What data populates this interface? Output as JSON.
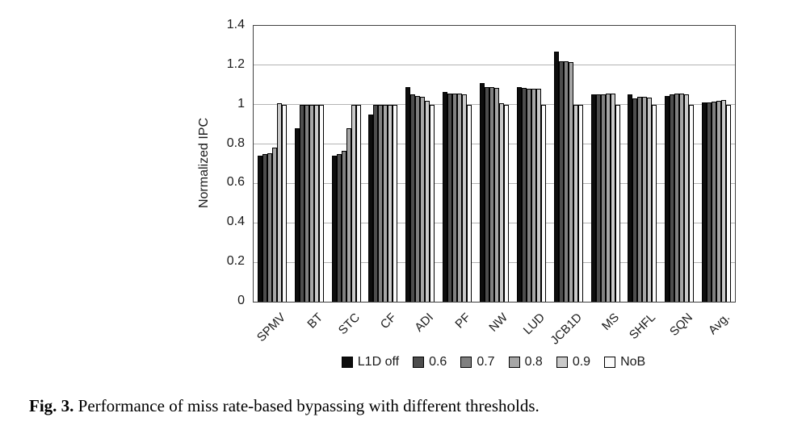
{
  "figure": {
    "caption": {
      "label": "Fig. 3.",
      "text": "Performance of miss rate-based bypassing with different thresholds."
    }
  },
  "chart_data": {
    "type": "bar",
    "title": "",
    "xlabel": "",
    "ylabel": "Normalized IPC",
    "ylim": [
      0,
      1.4
    ],
    "ytick_labels": [
      "0",
      "0.2",
      "0.4",
      "0.6",
      "0.8",
      "1",
      "1.2",
      "1.4"
    ],
    "grid": true,
    "legend_position": "bottom",
    "categories": [
      "SPMV",
      "BT",
      "STC",
      "CF",
      "ADI",
      "PF",
      "NW",
      "LUD",
      "JCB1D",
      "MS",
      "SHFL",
      "SQN",
      "Avg."
    ],
    "series": [
      {
        "name": "L1D off",
        "color": "#0d0d0d",
        "values": [
          0.74,
          0.88,
          0.74,
          0.95,
          1.09,
          1.065,
          1.11,
          1.09,
          1.27,
          1.05,
          1.05,
          1.045,
          1.01
        ]
      },
      {
        "name": "0.6",
        "color": "#4d4d4d",
        "values": [
          0.75,
          1.0,
          0.75,
          1.0,
          1.05,
          1.055,
          1.09,
          1.085,
          1.22,
          1.05,
          1.03,
          1.05,
          1.01
        ]
      },
      {
        "name": "0.7",
        "color": "#808080",
        "values": [
          0.755,
          1.0,
          0.765,
          1.0,
          1.045,
          1.055,
          1.09,
          1.08,
          1.22,
          1.05,
          1.04,
          1.055,
          1.015
        ]
      },
      {
        "name": "0.8",
        "color": "#a6a6a6",
        "values": [
          0.78,
          1.0,
          0.88,
          1.0,
          1.04,
          1.055,
          1.085,
          1.08,
          1.215,
          1.055,
          1.04,
          1.055,
          1.02
        ]
      },
      {
        "name": "0.9",
        "color": "#c9c9c9",
        "values": [
          1.005,
          1.0,
          1.0,
          1.0,
          1.02,
          1.05,
          1.005,
          1.08,
          1.0,
          1.055,
          1.035,
          1.05,
          1.025
        ]
      },
      {
        "name": "NoB",
        "color": "#fbfbfb",
        "values": [
          1.0,
          1.0,
          1.0,
          1.0,
          1.0,
          1.0,
          1.0,
          1.0,
          1.0,
          1.0,
          1.0,
          1.0,
          1.0
        ]
      }
    ]
  }
}
